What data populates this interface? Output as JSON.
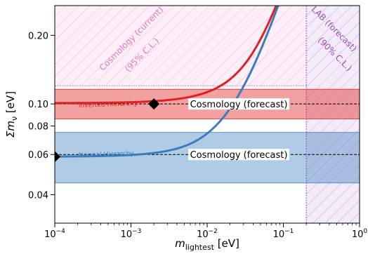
{
  "chart_data": {
    "type": "line",
    "x_scale": "log",
    "y_scale": "log",
    "xlim": [
      0.0001,
      1
    ],
    "ylim": [
      0.03,
      0.27
    ],
    "xlabel": {
      "main": "m",
      "sub": "lightest",
      "unit": " [eV]"
    },
    "ylabel": {
      "main": "Σm",
      "sub": "ν",
      "unit": " [eV]"
    },
    "x_ticks": [
      {
        "value": 0.0001,
        "base": "10",
        "exp": "−4"
      },
      {
        "value": 0.001,
        "base": "10",
        "exp": "−3"
      },
      {
        "value": 0.01,
        "base": "10",
        "exp": "−2"
      },
      {
        "value": 0.1,
        "base": "10",
        "exp": "−1"
      },
      {
        "value": 1,
        "base": "10",
        "exp": "0"
      }
    ],
    "y_ticks": [
      {
        "value": 0.04,
        "label": "0.04"
      },
      {
        "value": 0.06,
        "label": "0.06"
      },
      {
        "value": 0.08,
        "label": "0.08"
      },
      {
        "value": 0.1,
        "label": "0.10"
      },
      {
        "value": 0.2,
        "label": "0.20"
      }
    ],
    "series": [
      {
        "name": "Inverted Hierarchy",
        "color": "#e02020",
        "min_sum": 0.0991
      },
      {
        "name": "Normal Hierarchy",
        "color": "#3a7dbf",
        "min_sum": 0.0587
      }
    ],
    "bands": [
      {
        "label": "Cosmology (forecast)",
        "y_low": 0.086,
        "y_high": 0.116,
        "y_center": 0.1,
        "color": "#e02020"
      },
      {
        "label": "Cosmology (forecast)",
        "y_low": 0.045,
        "y_high": 0.075,
        "y_center": 0.06,
        "color": "#3a7dbf"
      }
    ],
    "regions": [
      {
        "label_line1": "Cosmology (current)",
        "label_line2": "(95% C.L.)",
        "y_low": 0.12,
        "color": "#e377c2"
      },
      {
        "label_line1": "LAB (forecast)",
        "label_line2": "(90% C.L.)",
        "x_low": 0.2,
        "color": "#9b4dba"
      }
    ],
    "markers": [
      {
        "x": 0.0001,
        "y": 0.0587
      },
      {
        "x": 0.002,
        "y": 0.1
      }
    ]
  }
}
